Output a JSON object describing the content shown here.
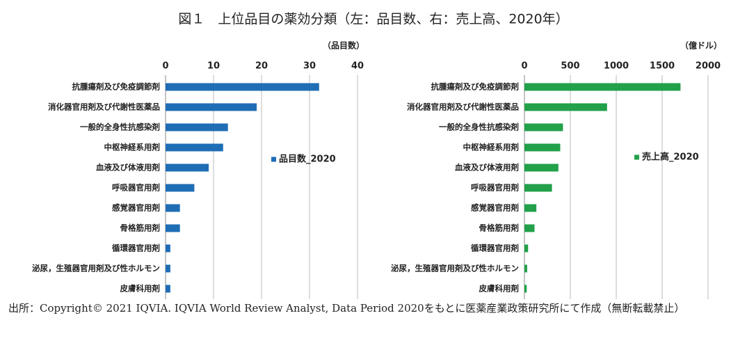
{
  "title": "図１　上位品目の薬効分類（左：品目数、右：売上高、2020年）",
  "source": "出所：Copyright© 2021 IQVIA. IQVIA World Review Analyst, Data Period 2020をもとに医薬産業政策研究所にて作成（無断転載禁止）",
  "chart_data": [
    {
      "type": "bar",
      "orientation": "horizontal",
      "x_label": "（品目数）",
      "categories": [
        "抗腫瘍剤及び免疫調節剤",
        "消化器官用剤及び代謝性医薬品",
        "一般的全身性抗感染剤",
        "中枢神経系用剤",
        "血液及び体液用剤",
        "呼吸器官用剤",
        "感覚器官用剤",
        "骨格筋用剤",
        "循環器官用剤",
        "泌尿，生殖器官用剤及び性ホルモン",
        "皮膚科用剤"
      ],
      "series": [
        {
          "name": "品目数_2020",
          "color": "#1f6db5",
          "values": [
            32,
            19,
            13,
            12,
            9,
            6,
            3,
            3,
            1,
            1,
            1
          ]
        }
      ],
      "xlim": [
        0,
        40
      ],
      "xticks": [
        0,
        10,
        20,
        30,
        40
      ],
      "grid": true
    },
    {
      "type": "bar",
      "orientation": "horizontal",
      "x_label": "（億ドル）",
      "categories": [
        "抗腫瘍剤及び免疫調節剤",
        "消化器官用剤及び代謝性医薬品",
        "一般的全身性抗感染剤",
        "中枢神経系用剤",
        "血液及び体液用剤",
        "呼吸器官用剤",
        "感覚器官用剤",
        "骨格筋用剤",
        "循環器官用剤",
        "泌尿，生殖器官用剤及び性ホルモン",
        "皮膚科用剤"
      ],
      "series": [
        {
          "name": "売上高_2020",
          "color": "#22a04a",
          "values": [
            1700,
            900,
            420,
            390,
            370,
            300,
            130,
            110,
            40,
            30,
            25
          ]
        }
      ],
      "xlim": [
        0,
        2000
      ],
      "xticks": [
        0,
        500,
        1000,
        1500,
        2000
      ],
      "grid": true
    }
  ]
}
